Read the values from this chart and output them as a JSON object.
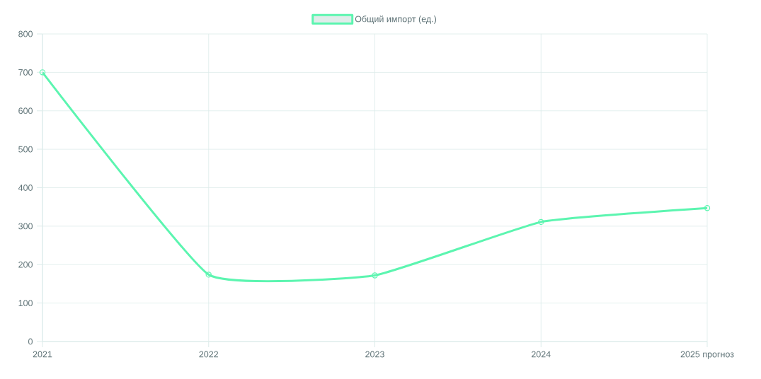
{
  "chart_data": {
    "type": "line",
    "categories": [
      "2021",
      "2022",
      "2023",
      "2024",
      "2025 прогноз"
    ],
    "series": [
      {
        "name": "Общий импорт (ед.)",
        "color": "#5cf5b0",
        "values": [
          700,
          174,
          172,
          311,
          347
        ]
      }
    ],
    "ylim": [
      0,
      800
    ],
    "yticks": [
      0,
      100,
      200,
      300,
      400,
      500,
      600,
      700,
      800
    ],
    "grid": true,
    "legend": "top",
    "marker": "circle",
    "line_style": "solid"
  }
}
